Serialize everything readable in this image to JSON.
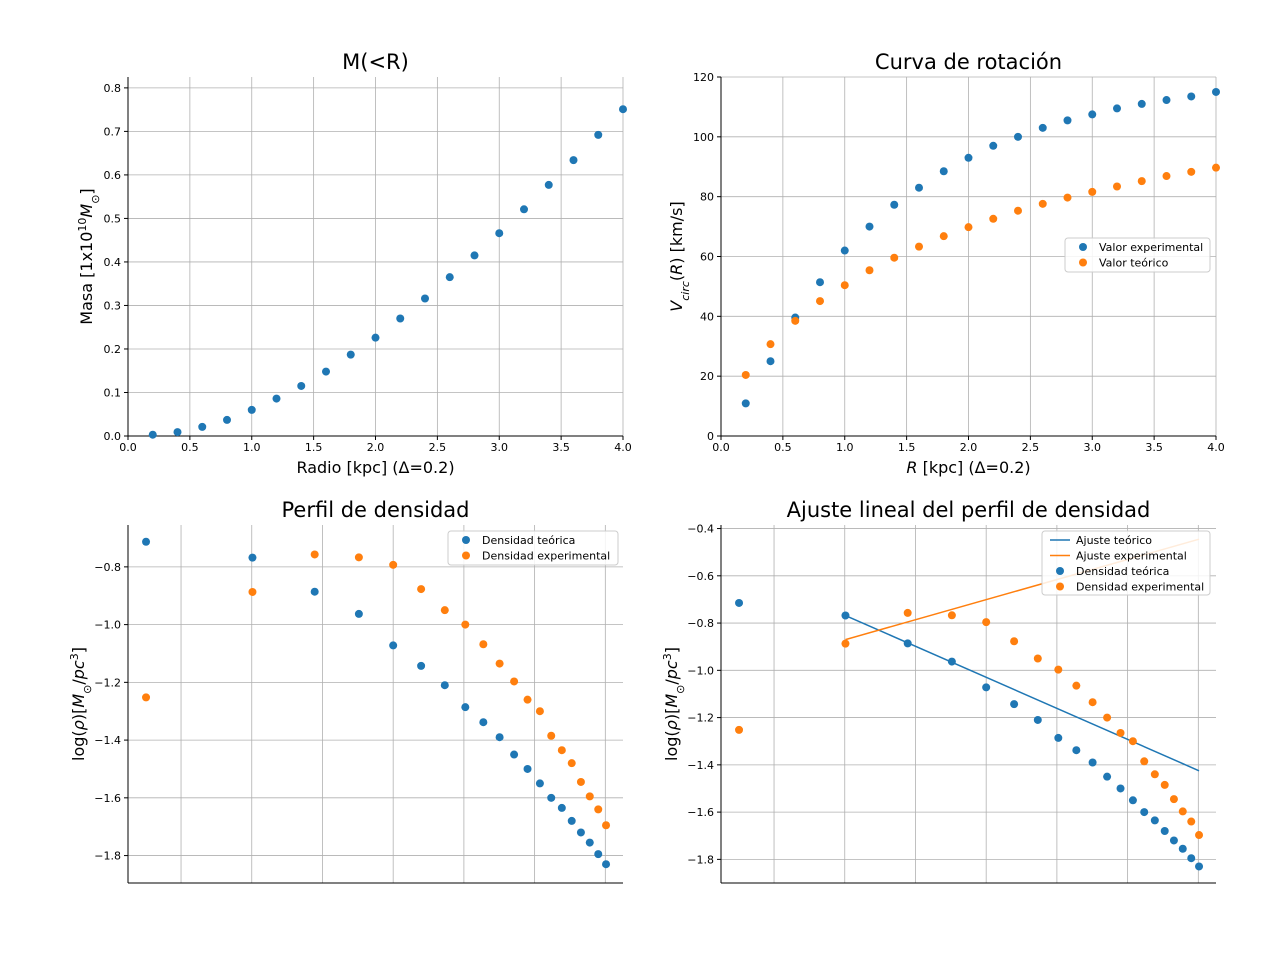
{
  "colors": {
    "blue": "#1f77b4",
    "orange": "#ff7f0e",
    "grid": "#b0b0b0",
    "axis": "#000000"
  },
  "chart_data": [
    {
      "type": "scatter",
      "title": "M(<R)",
      "xlabel": "Radio [kpc] (Δ=0.2)",
      "ylabel": "Masa [1x10¹⁰M⊙]",
      "xlim": [
        0,
        4.0
      ],
      "ylim": [
        0,
        0.825
      ],
      "xticks": [
        0,
        0.5,
        1.0,
        1.5,
        2.0,
        2.5,
        3.0,
        3.5,
        4.0
      ],
      "xtick_labels": [
        "0.0",
        "0.5",
        "1.0",
        "1.5",
        "2.0",
        "2.5",
        "3.0",
        "3.5",
        "4.0"
      ],
      "yticks": [
        0,
        0.1,
        0.2,
        0.3,
        0.4,
        0.5,
        0.6,
        0.7,
        0.8
      ],
      "ytick_labels": [
        "0.0",
        "0.1",
        "0.2",
        "0.3",
        "0.4",
        "0.5",
        "0.6",
        "0.7",
        "0.8"
      ],
      "grid": true,
      "series": [
        {
          "color": "#1f77b4",
          "x": [
            0.2,
            0.4,
            0.6,
            0.8,
            1.0,
            1.2,
            1.4,
            1.6,
            1.8,
            2.0,
            2.2,
            2.4,
            2.6,
            2.8,
            3.0,
            3.2,
            3.4,
            3.6,
            3.8,
            4.0
          ],
          "y": [
            0.003,
            0.009,
            0.021,
            0.037,
            0.06,
            0.086,
            0.115,
            0.148,
            0.187,
            0.226,
            0.27,
            0.316,
            0.365,
            0.415,
            0.466,
            0.521,
            0.577,
            0.634,
            0.692,
            0.751
          ]
        }
      ]
    },
    {
      "type": "scatter",
      "title": "Curva de rotación",
      "xlabel": "R [kpc] (Δ=0.2)",
      "ylabel": "V_circ(R) [km/s]",
      "xlim": [
        0,
        4.0
      ],
      "ylim": [
        0,
        120
      ],
      "xticks": [
        0,
        0.5,
        1.0,
        1.5,
        2.0,
        2.5,
        3.0,
        3.5,
        4.0
      ],
      "xtick_labels": [
        "0.0",
        "0.5",
        "1.0",
        "1.5",
        "2.0",
        "2.5",
        "3.0",
        "3.5",
        "4.0"
      ],
      "yticks": [
        0,
        20,
        40,
        60,
        80,
        100,
        120
      ],
      "ytick_labels": [
        "0",
        "20",
        "40",
        "60",
        "80",
        "100",
        "120"
      ],
      "grid": true,
      "legend": "center-right",
      "series": [
        {
          "name": "Valor experimental",
          "color": "#1f77b4",
          "x": [
            0.2,
            0.4,
            0.6,
            0.8,
            1.0,
            1.2,
            1.4,
            1.6,
            1.8,
            2.0,
            2.2,
            2.4,
            2.6,
            2.8,
            3.0,
            3.2,
            3.4,
            3.6,
            3.8,
            4.0
          ],
          "y": [
            10.9,
            25,
            39.6,
            51.4,
            62,
            70,
            77.3,
            83,
            88.5,
            93,
            97,
            100,
            103,
            105.5,
            107.5,
            109.5,
            111,
            112.3,
            113.5,
            115
          ]
        },
        {
          "name": "Valor teórico",
          "color": "#ff7f0e",
          "x": [
            0.2,
            0.4,
            0.6,
            0.8,
            1.0,
            1.2,
            1.4,
            1.6,
            1.8,
            2.0,
            2.2,
            2.4,
            2.6,
            2.8,
            3.0,
            3.2,
            3.4,
            3.6,
            3.8,
            4.0
          ],
          "y": [
            20.4,
            30.7,
            38.5,
            45.1,
            50.4,
            55.4,
            59.6,
            63.3,
            66.8,
            69.8,
            72.6,
            75.3,
            77.6,
            79.7,
            81.6,
            83.4,
            85.2,
            86.9,
            88.3,
            89.7
          ]
        }
      ]
    },
    {
      "type": "scatter",
      "title": "Perfil de densidad",
      "xlabel": "",
      "ylabel": "log(ρ)[M⊙/pc³]",
      "xlim": [
        -0.75,
        0.65
      ],
      "ylim": [
        -1.895,
        -0.655
      ],
      "xticks": [],
      "yticks": [
        -1.8,
        -1.6,
        -1.4,
        -1.2,
        -1.0,
        -0.8
      ],
      "ytick_labels": [
        "−1.8",
        "−1.6",
        "−1.4",
        "−1.2",
        "−1.0",
        "−0.8"
      ],
      "x_gridlines": [
        -0.6,
        -0.4,
        -0.2,
        0.0,
        0.2,
        0.4,
        0.6
      ],
      "grid": true,
      "legend": "top-right",
      "series": [
        {
          "name": "Densidad teórica",
          "color": "#1f77b4",
          "x": [
            -0.699,
            -0.398,
            -0.222,
            -0.097,
            0.0,
            0.079,
            0.146,
            0.204,
            0.255,
            0.301,
            0.342,
            0.38,
            0.415,
            0.447,
            0.477,
            0.505,
            0.531,
            0.556,
            0.58,
            0.602
          ],
          "y": [
            -0.713,
            -0.768,
            -0.886,
            -0.963,
            -1.072,
            -1.143,
            -1.21,
            -1.286,
            -1.338,
            -1.39,
            -1.45,
            -1.5,
            -1.55,
            -1.6,
            -1.635,
            -1.68,
            -1.72,
            -1.755,
            -1.795,
            -1.83
          ]
        },
        {
          "name": "Densidad experimental",
          "color": "#ff7f0e",
          "x": [
            -0.699,
            -0.398,
            -0.222,
            -0.097,
            0.0,
            0.079,
            0.146,
            0.204,
            0.255,
            0.301,
            0.342,
            0.38,
            0.415,
            0.447,
            0.477,
            0.505,
            0.531,
            0.556,
            0.58,
            0.602
          ],
          "y": [
            -1.252,
            -0.887,
            -0.757,
            -0.767,
            -0.793,
            -0.877,
            -0.95,
            -1.0,
            -1.068,
            -1.135,
            -1.197,
            -1.26,
            -1.3,
            -1.385,
            -1.435,
            -1.48,
            -1.545,
            -1.595,
            -1.64,
            -1.695
          ]
        }
      ]
    },
    {
      "type": "scatter",
      "title": "Ajuste lineal del perfil de densidad",
      "xlabel": "",
      "ylabel": "log(ρ)[M⊙/pc³]",
      "xlim": [
        -0.75,
        0.65
      ],
      "ylim": [
        -1.9,
        -0.385
      ],
      "xticks": [],
      "yticks": [
        -1.8,
        -1.6,
        -1.4,
        -1.2,
        -1.0,
        -0.8,
        -0.6,
        -0.4
      ],
      "ytick_labels": [
        "−1.8",
        "−1.6",
        "−1.4",
        "−1.2",
        "−1.0",
        "−0.8",
        "−0.6",
        "−0.4"
      ],
      "x_gridlines": [
        -0.6,
        -0.4,
        -0.2,
        0.0,
        0.2,
        0.4,
        0.6
      ],
      "grid": true,
      "legend": "top-right",
      "lines": [
        {
          "name": "Ajuste teórico",
          "color": "#1f77b4",
          "x": [
            -0.398,
            0.602
          ],
          "y": [
            -0.768,
            -1.425
          ]
        },
        {
          "name": "Ajuste experimental",
          "color": "#ff7f0e",
          "x": [
            -0.398,
            0.602
          ],
          "y": [
            -0.87,
            -0.445
          ]
        }
      ],
      "series": [
        {
          "name": "Densidad teórica",
          "color": "#1f77b4",
          "x": [
            -0.699,
            -0.398,
            -0.222,
            -0.097,
            0.0,
            0.079,
            0.146,
            0.204,
            0.255,
            0.301,
            0.342,
            0.38,
            0.415,
            0.447,
            0.477,
            0.505,
            0.531,
            0.556,
            0.58,
            0.602
          ],
          "y": [
            -0.715,
            -0.768,
            -0.886,
            -0.963,
            -1.072,
            -1.143,
            -1.21,
            -1.286,
            -1.338,
            -1.39,
            -1.45,
            -1.5,
            -1.55,
            -1.6,
            -1.635,
            -1.68,
            -1.72,
            -1.755,
            -1.795,
            -1.83
          ]
        },
        {
          "name": "Densidad experimental",
          "color": "#ff7f0e",
          "x": [
            -0.699,
            -0.398,
            -0.222,
            -0.097,
            0.0,
            0.079,
            0.146,
            0.204,
            0.255,
            0.301,
            0.342,
            0.38,
            0.415,
            0.447,
            0.477,
            0.505,
            0.531,
            0.556,
            0.58,
            0.602
          ],
          "y": [
            -1.252,
            -0.887,
            -0.757,
            -0.767,
            -0.796,
            -0.877,
            -0.95,
            -0.997,
            -1.065,
            -1.135,
            -1.2,
            -1.265,
            -1.3,
            -1.385,
            -1.44,
            -1.485,
            -1.545,
            -1.597,
            -1.64,
            -1.697
          ]
        }
      ]
    }
  ]
}
